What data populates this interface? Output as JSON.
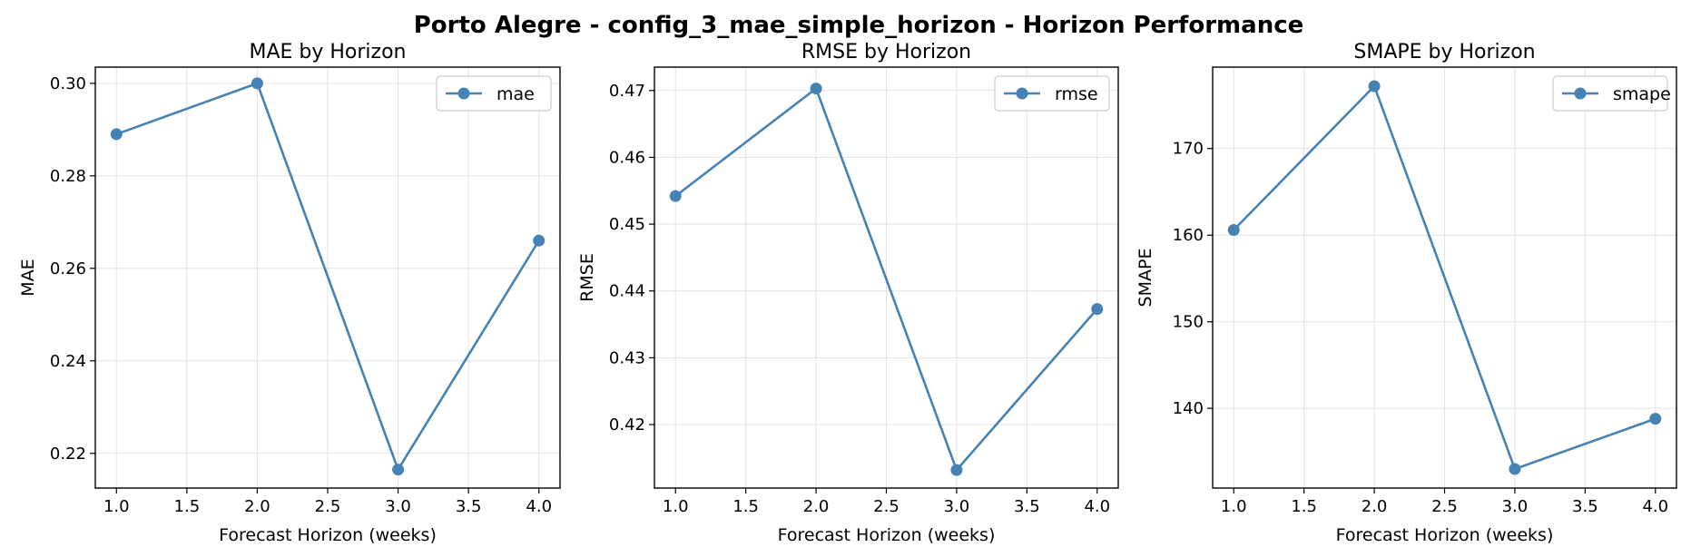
{
  "figure_title": "Porto Alegre - config_3_mae_simple_horizon - Horizon Performance",
  "chart_data": [
    {
      "type": "line",
      "title": "MAE by Horizon",
      "xlabel": "Forecast Horizon (weeks)",
      "ylabel": "MAE",
      "xlim": [
        0.85,
        4.15
      ],
      "ylim": [
        0.2125,
        0.3035
      ],
      "xticks": [
        1.0,
        1.5,
        2.0,
        2.5,
        3.0,
        3.5,
        4.0
      ],
      "xtick_labels": [
        "1.0",
        "1.5",
        "2.0",
        "2.5",
        "3.0",
        "3.5",
        "4.0"
      ],
      "yticks": [
        0.22,
        0.24,
        0.26,
        0.28,
        0.3
      ],
      "ytick_labels": [
        "0.22",
        "0.24",
        "0.26",
        "0.28",
        "0.30"
      ],
      "grid": true,
      "legend": "top-right",
      "series": [
        {
          "name": "mae",
          "color": "#4682b4",
          "x": [
            1,
            2,
            3,
            4
          ],
          "y": [
            0.289,
            0.3,
            0.2165,
            0.266
          ]
        }
      ]
    },
    {
      "type": "line",
      "title": "RMSE by Horizon",
      "xlabel": "Forecast Horizon (weeks)",
      "ylabel": "RMSE",
      "xlim": [
        0.85,
        4.15
      ],
      "ylim": [
        0.4105,
        0.4735
      ],
      "xticks": [
        1.0,
        1.5,
        2.0,
        2.5,
        3.0,
        3.5,
        4.0
      ],
      "xtick_labels": [
        "1.0",
        "1.5",
        "2.0",
        "2.5",
        "3.0",
        "3.5",
        "4.0"
      ],
      "yticks": [
        0.42,
        0.43,
        0.44,
        0.45,
        0.46,
        0.47
      ],
      "ytick_labels": [
        "0.42",
        "0.43",
        "0.44",
        "0.45",
        "0.46",
        "0.47"
      ],
      "grid": true,
      "legend": "top-right",
      "series": [
        {
          "name": "rmse",
          "color": "#4682b4",
          "x": [
            1,
            2,
            3,
            4
          ],
          "y": [
            0.4542,
            0.4703,
            0.4132,
            0.4373
          ]
        }
      ]
    },
    {
      "type": "line",
      "title": "SMAPE by Horizon",
      "xlabel": "Forecast Horizon (weeks)",
      "ylabel": "SMAPE",
      "xlim": [
        0.85,
        4.15
      ],
      "ylim": [
        130.8,
        179.4
      ],
      "xticks": [
        1.0,
        1.5,
        2.0,
        2.5,
        3.0,
        3.5,
        4.0
      ],
      "xtick_labels": [
        "1.0",
        "1.5",
        "2.0",
        "2.5",
        "3.0",
        "3.5",
        "4.0"
      ],
      "yticks": [
        140,
        150,
        160,
        170
      ],
      "ytick_labels": [
        "140",
        "150",
        "160",
        "170"
      ],
      "grid": true,
      "legend": "top-right",
      "series": [
        {
          "name": "smape",
          "color": "#4682b4",
          "x": [
            1,
            2,
            3,
            4
          ],
          "y": [
            160.6,
            177.2,
            133.0,
            138.8
          ]
        }
      ]
    }
  ]
}
